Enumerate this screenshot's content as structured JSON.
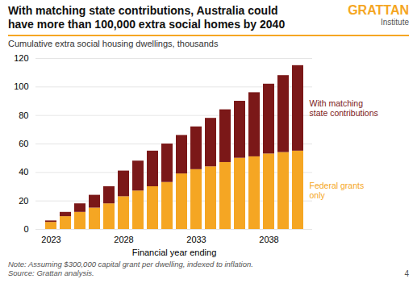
{
  "chart_data": {
    "type": "bar",
    "stacked": true,
    "title": "With matching state contributions, Australia could\nhave more than 100,000 extra social homes by 2040",
    "subtitle": "Cumulative extra social housing dwellings, thousands",
    "xlabel": "Financial year ending",
    "categories": [
      "2023",
      null,
      null,
      null,
      null,
      "2028",
      null,
      null,
      null,
      null,
      "2033",
      null,
      null,
      null,
      null,
      "2038",
      null,
      null
    ],
    "series": [
      {
        "name": "Federal grants\nonly",
        "color": "#F5A623",
        "values": [
          5,
          9,
          12,
          15,
          18,
          23,
          27,
          30,
          33,
          39,
          42,
          44,
          47,
          50,
          51,
          53,
          54,
          55
        ]
      },
      {
        "name": "With matching\nstate contributions",
        "color": "#7B1818",
        "values": [
          1,
          3,
          6,
          9,
          12,
          18,
          21,
          25,
          27,
          27,
          30,
          34,
          37,
          40,
          45,
          49,
          54,
          60
        ]
      }
    ],
    "ylim": [
      0,
      120
    ],
    "yticks": [
      0,
      20,
      40,
      60,
      80,
      100,
      120
    ],
    "grid": true,
    "annotations": [
      "GRATTAN",
      "Institute",
      "Note: Assuming $300,000 capital grant per dwelling, indexed to inflation.\nSource: Grattan analysis.",
      "4"
    ]
  }
}
